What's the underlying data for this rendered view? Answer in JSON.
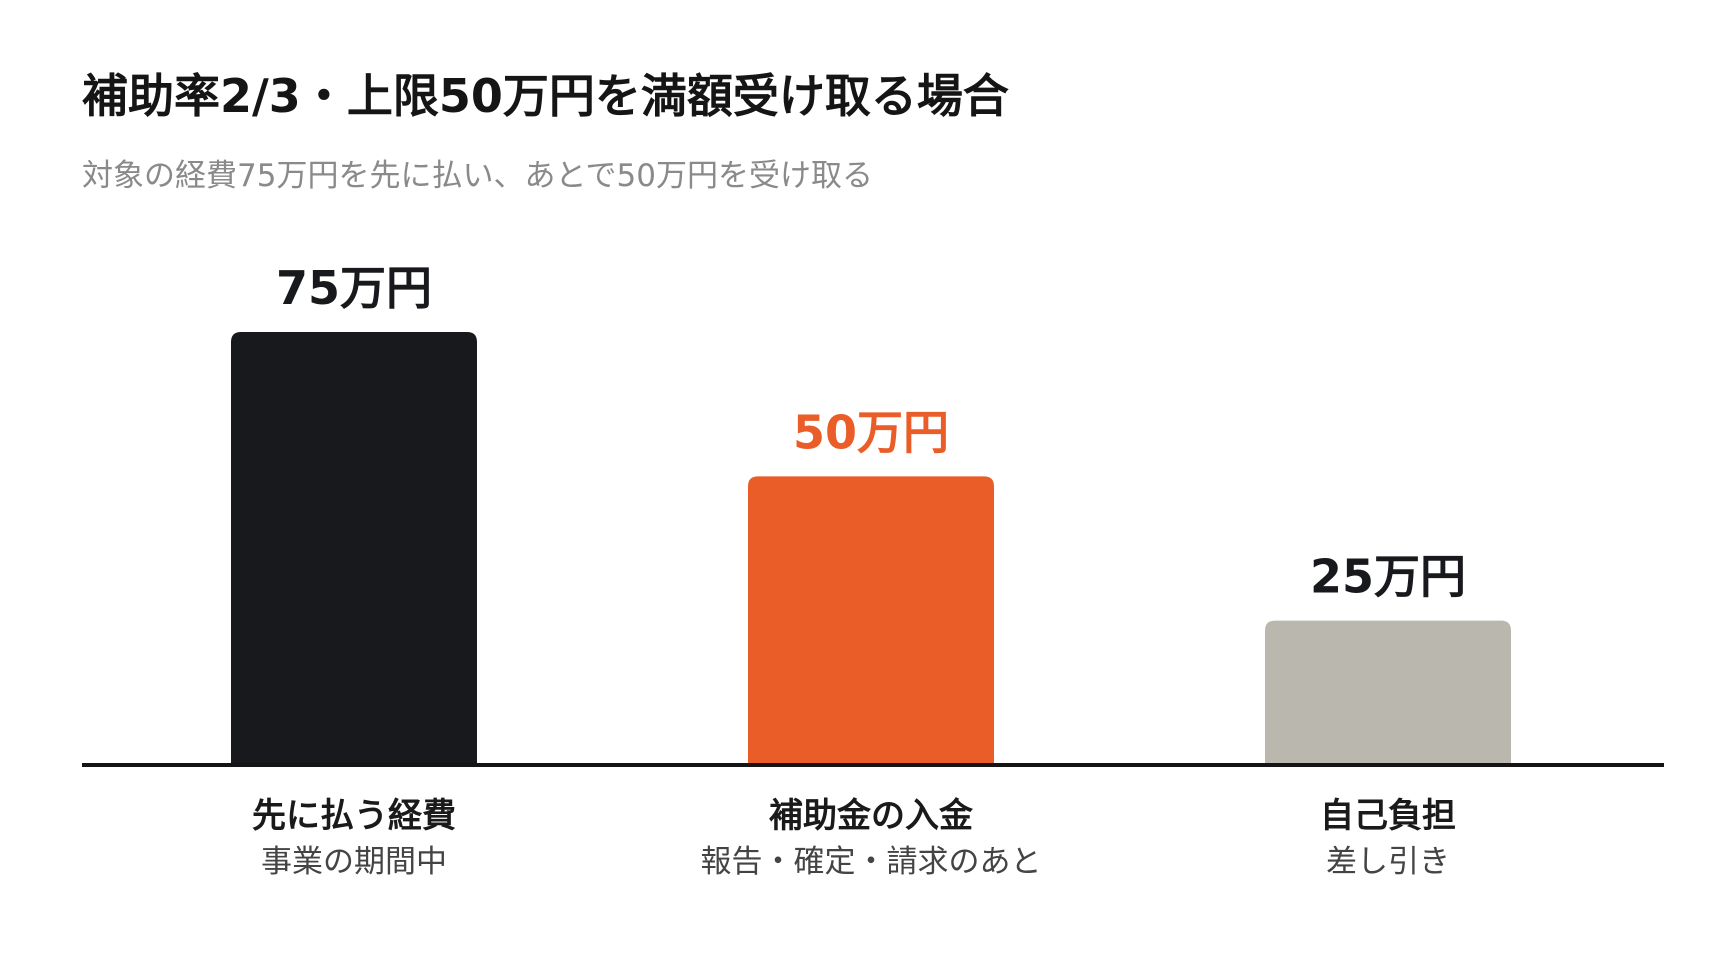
{
  "chart_data": {
    "type": "bar",
    "title": "補助率2/3・上限50万円を満額受け取る場合",
    "subtitle": "対象の経費75万円を先に払い、あとで50万円を受け取る",
    "categories": [
      "先に払う経費",
      "補助金の入金",
      "自己負担"
    ],
    "category_notes": [
      "事業の期間中",
      "報告・確定・請求のあと",
      "差し引き"
    ],
    "values": [
      75,
      50,
      25
    ],
    "value_labels": [
      "75万円",
      "50万円",
      "25万円"
    ],
    "bar_colors": [
      "#18191c",
      "#ea5d28",
      "#b9b7ae"
    ],
    "label_colors": [
      "#18191c",
      "#ea5d28",
      "#18191c"
    ],
    "ylim": [
      0,
      75
    ],
    "grid": false,
    "legend": "none"
  }
}
